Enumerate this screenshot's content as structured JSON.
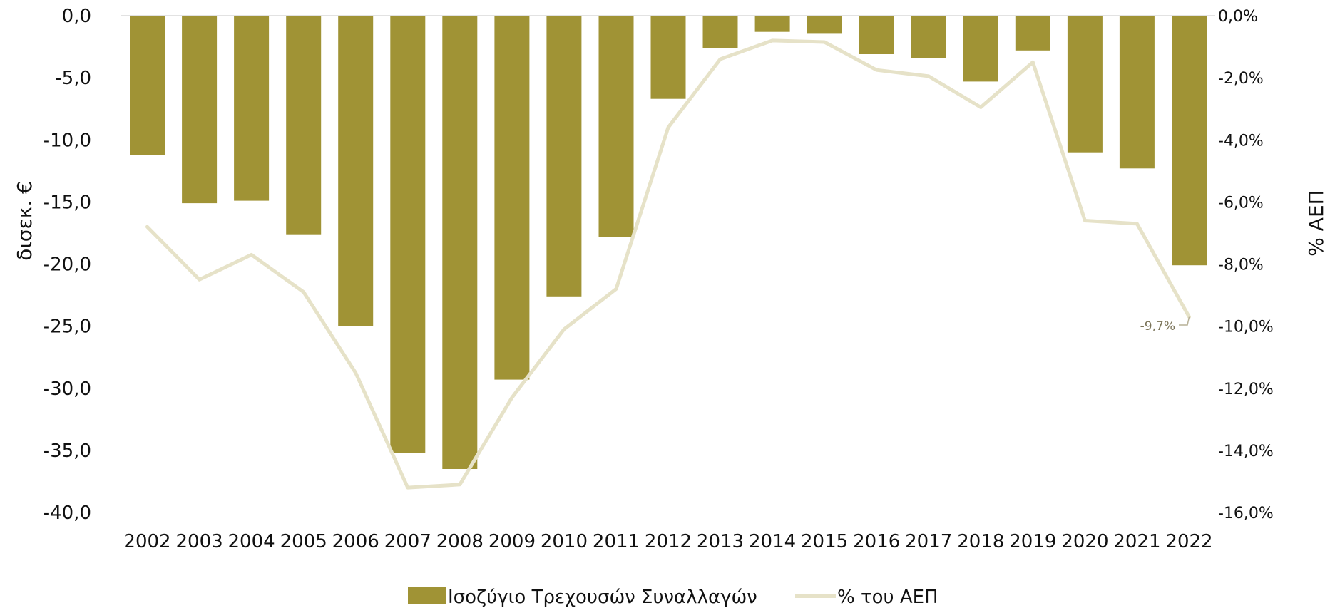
{
  "chart_data": {
    "type": "bar",
    "categories": [
      "2002",
      "2003",
      "2004",
      "2005",
      "2006",
      "2007",
      "2008",
      "2009",
      "2010",
      "2011",
      "2012",
      "2013",
      "2014",
      "2015",
      "2016",
      "2017",
      "2018",
      "2019",
      "2020",
      "2021",
      "2022"
    ],
    "series": [
      {
        "name": "Ισοζύγιο Τρεχουσών Συναλλαγών",
        "type": "bar",
        "axis": "left",
        "color": "#a09335",
        "values": [
          -11.2,
          -15.1,
          -14.9,
          -17.6,
          -25.0,
          -35.2,
          -36.5,
          -29.3,
          -22.6,
          -17.8,
          -6.7,
          -2.6,
          -1.3,
          -1.4,
          -3.1,
          -3.4,
          -5.3,
          -2.8,
          -11.0,
          -12.3,
          -20.1
        ]
      },
      {
        "name": "% του ΑΕΠ",
        "type": "line",
        "axis": "right",
        "color": "#e6e2c8",
        "values": [
          -6.8,
          -8.5,
          -7.7,
          -8.9,
          -11.5,
          -15.2,
          -15.1,
          -12.3,
          -10.1,
          -8.8,
          -3.6,
          -1.4,
          -0.8,
          -0.85,
          -1.75,
          -1.95,
          -2.95,
          -1.5,
          -6.6,
          -6.7,
          -9.7
        ]
      }
    ],
    "y_left": {
      "label": "δισεκ. €",
      "ylim": [
        -40,
        0
      ],
      "ticks": [
        "0,0",
        "-5,0",
        "-10,0",
        "-15,0",
        "-20,0",
        "-25,0",
        "-30,0",
        "-35,0",
        "-40,0"
      ],
      "tick_values": [
        0,
        -5,
        -10,
        -15,
        -20,
        -25,
        -30,
        -35,
        -40
      ]
    },
    "y_right": {
      "label": "% ΑΕΠ",
      "ylim": [
        -16,
        0
      ],
      "ticks": [
        "0,0%",
        "-2,0%",
        "-4,0%",
        "-6,0%",
        "-8,0%",
        "-10,0%",
        "-12,0%",
        "-14,0%",
        "-16,0%"
      ],
      "tick_values": [
        0,
        -2,
        -4,
        -6,
        -8,
        -10,
        -12,
        -14,
        -16
      ]
    },
    "annotation": {
      "text": "-9,7%",
      "category": "2022",
      "series": "% του ΑΕΠ"
    },
    "grid": false,
    "legend": {
      "position": "bottom",
      "entries": [
        "Ισοζύγιο Τρεχουσών Συναλλαγών",
        "% του ΑΕΠ"
      ]
    },
    "colors": {
      "bar": "#a09335",
      "line": "#e6e2c8",
      "zero_line": "#d9d9d9",
      "annotation": "#7a7358"
    }
  }
}
